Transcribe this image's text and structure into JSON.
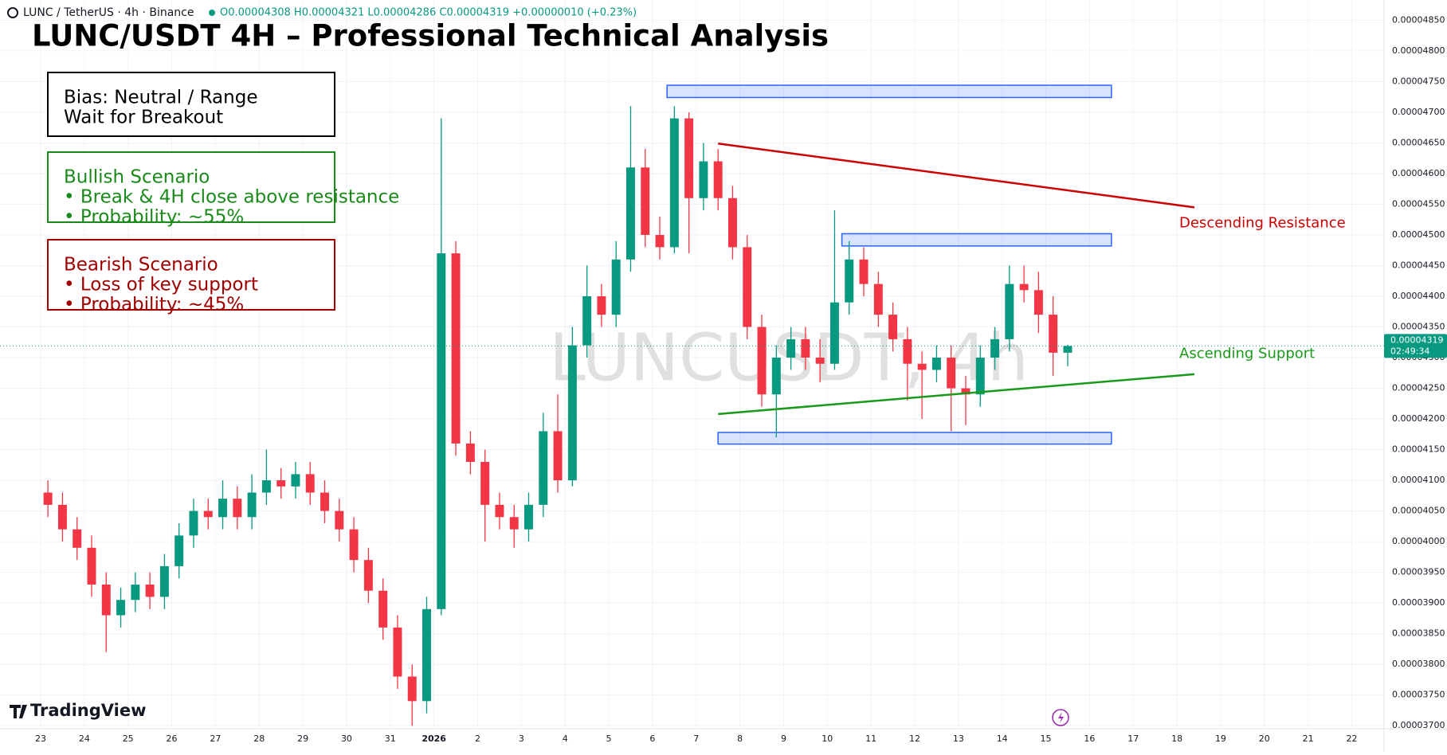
{
  "header": {
    "symbol": "LUNC / TetherUS · 4h · Binance",
    "ohlc_text": "O0.00004308 H0.00004321 L0.00004286 C0.00004319 +0.00000010 (+0.23%)",
    "countdown": "02:49:34",
    "watermark": "LUNCUSDT, 4h",
    "brand": "TradingView"
  },
  "annotations": {
    "bias": [
      "Bias: Neutral / Range",
      "Wait for Breakout"
    ],
    "bullish": [
      "Bullish Scenario",
      "• Break & 4H close above resistance",
      "• Probability: ~55%"
    ],
    "bearish": [
      "Bearish Scenario",
      "• Loss of key support",
      "• Probability: ~45%"
    ]
  },
  "chart_data": {
    "type": "candlestick",
    "title": "LUNC/USDT 4H – Professional Technical Analysis",
    "up_color": "#089981",
    "down_color": "#f23645",
    "categories": [
      "23",
      null,
      null,
      "24",
      null,
      null,
      "25",
      null,
      null,
      "26",
      null,
      null,
      "27",
      null,
      null,
      "28",
      null,
      null,
      "29",
      null,
      null,
      "30",
      null,
      null,
      "31",
      null,
      null,
      "2026",
      null,
      null,
      "2",
      null,
      null,
      "3",
      null,
      null,
      "4",
      null,
      null,
      "5",
      null,
      null,
      "6",
      null,
      null,
      "7",
      null,
      null,
      "8",
      null,
      null,
      "9",
      null,
      null,
      "10",
      null,
      null,
      "11",
      null,
      null,
      "12",
      null,
      null,
      "13",
      null,
      null,
      "14",
      null,
      null,
      "15",
      null,
      null,
      "16",
      null,
      null,
      "17",
      null,
      null,
      "18",
      null,
      null,
      "19",
      null,
      null,
      "20",
      null,
      null,
      "21",
      null,
      null,
      "22",
      null,
      null
    ],
    "open": [
      4.08e-05,
      4.06e-05,
      4.02e-05,
      3.99e-05,
      3.93e-05,
      3.88e-05,
      3.905e-05,
      3.93e-05,
      3.91e-05,
      3.96e-05,
      4.01e-05,
      4.05e-05,
      4.04e-05,
      4.07e-05,
      4.04e-05,
      4.08e-05,
      4.1e-05,
      4.09e-05,
      4.11e-05,
      4.08e-05,
      4.05e-05,
      4.02e-05,
      3.97e-05,
      3.92e-05,
      3.86e-05,
      3.78e-05,
      3.74e-05,
      3.89e-05,
      4.47e-05,
      4.16e-05,
      4.13e-05,
      4.06e-05,
      4.04e-05,
      4.02e-05,
      4.06e-05,
      4.18e-05,
      4.1e-05,
      4.32e-05,
      4.4e-05,
      4.37e-05,
      4.46e-05,
      4.61e-05,
      4.5e-05,
      4.48e-05,
      4.69e-05,
      4.56e-05,
      4.62e-05,
      4.56e-05,
      4.48e-05,
      4.35e-05,
      4.24e-05,
      4.3e-05,
      4.33e-05,
      4.3e-05,
      4.29e-05,
      4.39e-05,
      4.46e-05,
      4.42e-05,
      4.37e-05,
      4.33e-05,
      4.29e-05,
      4.28e-05,
      4.3e-05,
      4.25e-05,
      4.24e-05,
      4.3e-05,
      4.33e-05,
      4.42e-05,
      4.41e-05,
      4.37e-05,
      4.308e-05,
      null,
      null,
      null,
      null,
      null,
      null,
      null,
      null,
      null,
      null,
      null,
      null,
      null,
      null,
      null,
      null,
      null,
      null,
      null,
      null,
      null,
      null
    ],
    "high": [
      4.1e-05,
      4.08e-05,
      4.04e-05,
      4.01e-05,
      3.95e-05,
      3.925e-05,
      3.95e-05,
      3.95e-05,
      3.98e-05,
      4.03e-05,
      4.07e-05,
      4.07e-05,
      4.1e-05,
      4.09e-05,
      4.11e-05,
      4.15e-05,
      4.12e-05,
      4.13e-05,
      4.13e-05,
      4.1e-05,
      4.07e-05,
      4.04e-05,
      3.99e-05,
      3.94e-05,
      3.88e-05,
      3.8e-05,
      3.91e-05,
      4.69e-05,
      4.49e-05,
      4.18e-05,
      4.15e-05,
      4.08e-05,
      4.06e-05,
      4.08e-05,
      4.21e-05,
      4.24e-05,
      4.35e-05,
      4.45e-05,
      4.42e-05,
      4.49e-05,
      4.71e-05,
      4.64e-05,
      4.53e-05,
      4.71e-05,
      4.7e-05,
      4.65e-05,
      4.64e-05,
      4.58e-05,
      4.5e-05,
      4.37e-05,
      4.32e-05,
      4.35e-05,
      4.35e-05,
      4.33e-05,
      4.54e-05,
      4.49e-05,
      4.48e-05,
      4.44e-05,
      4.39e-05,
      4.35e-05,
      4.31e-05,
      4.32e-05,
      4.32e-05,
      4.27e-05,
      4.32e-05,
      4.35e-05,
      4.45e-05,
      4.45e-05,
      4.44e-05,
      4.4e-05,
      4.321e-05,
      null,
      null,
      null,
      null,
      null,
      null,
      null,
      null,
      null,
      null,
      null,
      null,
      null,
      null,
      null,
      null,
      null,
      null,
      null,
      null,
      null,
      null
    ],
    "low": [
      4.04e-05,
      4e-05,
      3.97e-05,
      3.91e-05,
      3.82e-05,
      3.86e-05,
      3.885e-05,
      3.89e-05,
      3.89e-05,
      3.94e-05,
      3.99e-05,
      4.02e-05,
      4.02e-05,
      4.02e-05,
      4.02e-05,
      4.06e-05,
      4.07e-05,
      4.07e-05,
      4.06e-05,
      4.03e-05,
      4e-05,
      3.95e-05,
      3.9e-05,
      3.84e-05,
      3.76e-05,
      3.7e-05,
      3.72e-05,
      3.88e-05,
      4.14e-05,
      4.11e-05,
      4e-05,
      4.02e-05,
      3.99e-05,
      4e-05,
      4.04e-05,
      4.08e-05,
      4.09e-05,
      4.3e-05,
      4.35e-05,
      4.35e-05,
      4.44e-05,
      4.48e-05,
      4.46e-05,
      4.47e-05,
      4.47e-05,
      4.54e-05,
      4.54e-05,
      4.46e-05,
      4.33e-05,
      4.22e-05,
      4.17e-05,
      4.28e-05,
      4.28e-05,
      4.26e-05,
      4.28e-05,
      4.37e-05,
      4.4e-05,
      4.35e-05,
      4.31e-05,
      4.23e-05,
      4.2e-05,
      4.26e-05,
      4.18e-05,
      4.19e-05,
      4.22e-05,
      4.28e-05,
      4.31e-05,
      4.39e-05,
      4.34e-05,
      4.27e-05,
      4.286e-05,
      null,
      null,
      null,
      null,
      null,
      null,
      null,
      null,
      null,
      null,
      null,
      null,
      null,
      null,
      null,
      null,
      null,
      null,
      null,
      null,
      null,
      null
    ],
    "close": [
      4.06e-05,
      4.02e-05,
      3.99e-05,
      3.93e-05,
      3.88e-05,
      3.905e-05,
      3.93e-05,
      3.91e-05,
      3.96e-05,
      4.01e-05,
      4.05e-05,
      4.04e-05,
      4.07e-05,
      4.04e-05,
      4.08e-05,
      4.1e-05,
      4.09e-05,
      4.11e-05,
      4.08e-05,
      4.05e-05,
      4.02e-05,
      3.97e-05,
      3.92e-05,
      3.86e-05,
      3.78e-05,
      3.74e-05,
      3.89e-05,
      4.47e-05,
      4.16e-05,
      4.13e-05,
      4.06e-05,
      4.04e-05,
      4.02e-05,
      4.06e-05,
      4.18e-05,
      4.1e-05,
      4.32e-05,
      4.4e-05,
      4.37e-05,
      4.46e-05,
      4.61e-05,
      4.5e-05,
      4.48e-05,
      4.69e-05,
      4.56e-05,
      4.62e-05,
      4.56e-05,
      4.48e-05,
      4.35e-05,
      4.24e-05,
      4.3e-05,
      4.33e-05,
      4.3e-05,
      4.29e-05,
      4.39e-05,
      4.46e-05,
      4.42e-05,
      4.37e-05,
      4.33e-05,
      4.29e-05,
      4.28e-05,
      4.3e-05,
      4.25e-05,
      4.24e-05,
      4.3e-05,
      4.33e-05,
      4.42e-05,
      4.41e-05,
      4.37e-05,
      4.308e-05,
      4.319e-05,
      null,
      null,
      null,
      null,
      null,
      null,
      null,
      null,
      null,
      null,
      null,
      null,
      null,
      null,
      null,
      null,
      null,
      null,
      null,
      null,
      null,
      null
    ],
    "ylim": [
      3.695e-05,
      4.883e-05
    ],
    "yticks": [
      {
        "value": 3.7e-05,
        "label": "0.00003700"
      },
      {
        "value": 3.75e-05,
        "label": "0.00003750"
      },
      {
        "value": 3.8e-05,
        "label": "0.00003800"
      },
      {
        "value": 3.85e-05,
        "label": "0.00003850"
      },
      {
        "value": 3.9e-05,
        "label": "0.00003900"
      },
      {
        "value": 3.95e-05,
        "label": "0.00003950"
      },
      {
        "value": 4e-05,
        "label": "0.00004000"
      },
      {
        "value": 4.05e-05,
        "label": "0.00004050"
      },
      {
        "value": 4.1e-05,
        "label": "0.00004100"
      },
      {
        "value": 4.15e-05,
        "label": "0.00004150"
      },
      {
        "value": 4.2e-05,
        "label": "0.00004200"
      },
      {
        "value": 4.25e-05,
        "label": "0.00004250"
      },
      {
        "value": 4.3e-05,
        "label": "0.00004300"
      },
      {
        "value": 4.35e-05,
        "label": "0.00004350"
      },
      {
        "value": 4.4e-05,
        "label": "0.00004400"
      },
      {
        "value": 4.45e-05,
        "label": "0.00004450"
      },
      {
        "value": 4.5e-05,
        "label": "0.00004500"
      },
      {
        "value": 4.55e-05,
        "label": "0.00004550"
      },
      {
        "value": 4.6e-05,
        "label": "0.00004600"
      },
      {
        "value": 4.65e-05,
        "label": "0.00004650"
      },
      {
        "value": 4.7e-05,
        "label": "0.00004700"
      },
      {
        "value": 4.75e-05,
        "label": "0.00004750"
      },
      {
        "value": 4.8e-05,
        "label": "0.00004800"
      },
      {
        "value": 4.85e-05,
        "label": "0.00004850"
      }
    ],
    "grid": true,
    "zones": [
      [
        4.744e-05,
        4.724e-05
      ],
      [
        4.502e-05,
        4.482e-05
      ],
      [
        4.178e-05,
        4.159e-05
      ]
    ],
    "zone_color": "#2962ff",
    "trendlines": [
      {
        "name": "Descending Resistance",
        "color": "#cc0000",
        "values": [
          4.649e-05,
          4.545e-05
        ]
      },
      {
        "name": "Ascending Support",
        "color": "#1a9a1a",
        "values": [
          4.208e-05,
          4.273e-05
        ]
      }
    ]
  }
}
